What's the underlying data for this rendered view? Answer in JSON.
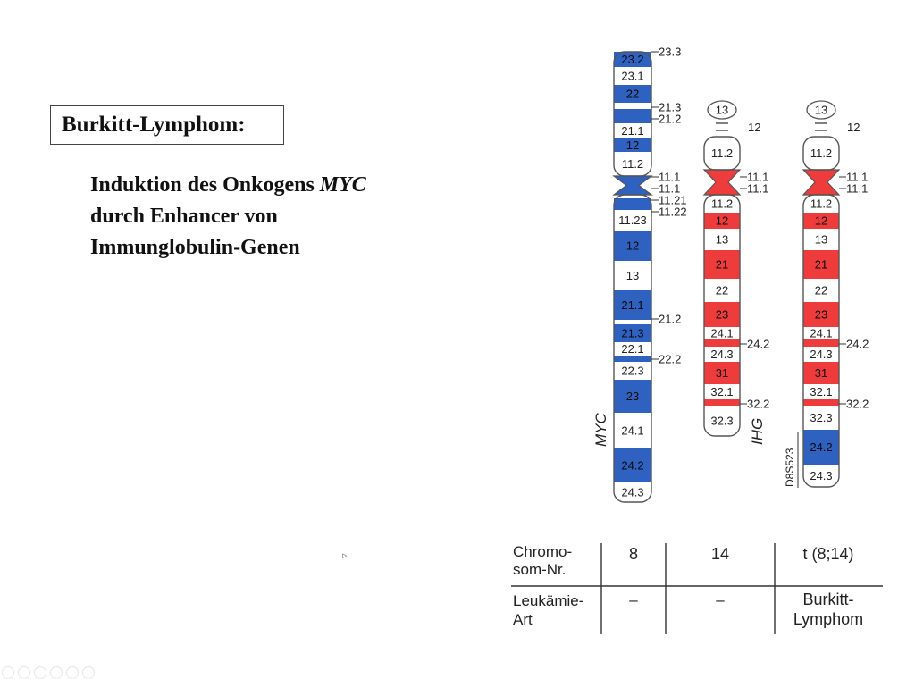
{
  "slide": {
    "title": "Burkitt-Lymphom:",
    "line1_prefix": "Induktion des Onkogens ",
    "line1_italic": "MYC",
    "line2": "durch Enhancer von",
    "line3": "Immunglobulin-Genen"
  },
  "colors": {
    "blue": "#2f62c0",
    "red": "#ee3b3b",
    "outline": "#555555"
  },
  "chromosomes": [
    {
      "id": "chr8",
      "gene_label": "MYC",
      "p_arm": [
        {
          "label": "23.2",
          "fill": "blue"
        },
        {
          "label": "23.1",
          "fill": "white"
        },
        {
          "label": "22",
          "fill": "blue"
        },
        {
          "label": "",
          "fill": "white"
        },
        {
          "label": "",
          "fill": "blue"
        },
        {
          "label": "21.1",
          "fill": "white"
        },
        {
          "label": "12",
          "fill": "blue"
        },
        {
          "label": "11.2",
          "fill": "white"
        }
      ],
      "q_arm": [
        {
          "label": "",
          "fill": "white"
        },
        {
          "label": "",
          "fill": "blue"
        },
        {
          "label": "11.23",
          "fill": "white"
        },
        {
          "label": "12",
          "fill": "blue"
        },
        {
          "label": "13",
          "fill": "white"
        },
        {
          "label": "21.1",
          "fill": "blue"
        },
        {
          "label": "",
          "fill": "white"
        },
        {
          "label": "21.3",
          "fill": "blue"
        },
        {
          "label": "22.1",
          "fill": "white"
        },
        {
          "label": "",
          "fill": "blue"
        },
        {
          "label": "22.3",
          "fill": "white"
        },
        {
          "label": "23",
          "fill": "blue"
        },
        {
          "label": "24.1",
          "fill": "white"
        },
        {
          "label": "24.2",
          "fill": "blue"
        },
        {
          "label": "24.3",
          "fill": "white"
        }
      ],
      "side_labels": [
        "23.3",
        "21.3",
        "21.2",
        "11.1",
        "11.1",
        "11.21",
        "11.22",
        "21.2",
        "22.2"
      ]
    },
    {
      "id": "chr14",
      "gene_label": "IHG",
      "satellite": "13",
      "stalk": "12",
      "p_arm": [
        {
          "label": "11.2",
          "fill": "white"
        }
      ],
      "q_arm": [
        {
          "label": "11.2",
          "fill": "white"
        },
        {
          "label": "12",
          "fill": "red"
        },
        {
          "label": "13",
          "fill": "white"
        },
        {
          "label": "21",
          "fill": "red"
        },
        {
          "label": "22",
          "fill": "white"
        },
        {
          "label": "23",
          "fill": "red"
        },
        {
          "label": "24.1",
          "fill": "white"
        },
        {
          "label": "",
          "fill": "red"
        },
        {
          "label": "24.3",
          "fill": "white"
        },
        {
          "label": "31",
          "fill": "red"
        },
        {
          "label": "32.1",
          "fill": "white"
        },
        {
          "label": "",
          "fill": "red"
        },
        {
          "label": "32.3",
          "fill": "white"
        }
      ],
      "side_labels": [
        "11.1",
        "11.1",
        "24.2",
        "32.2"
      ]
    },
    {
      "id": "der14",
      "gene_label": "D8S523",
      "satellite": "13",
      "stalk": "12",
      "p_arm": [
        {
          "label": "11.2",
          "fill": "white"
        }
      ],
      "q_arm": [
        {
          "label": "11.2",
          "fill": "white"
        },
        {
          "label": "12",
          "fill": "red"
        },
        {
          "label": "13",
          "fill": "white"
        },
        {
          "label": "21",
          "fill": "red"
        },
        {
          "label": "22",
          "fill": "white"
        },
        {
          "label": "23",
          "fill": "red"
        },
        {
          "label": "24.1",
          "fill": "white"
        },
        {
          "label": "",
          "fill": "red"
        },
        {
          "label": "24.3",
          "fill": "white"
        },
        {
          "label": "31",
          "fill": "red"
        },
        {
          "label": "32.1",
          "fill": "white"
        },
        {
          "label": "",
          "fill": "red"
        },
        {
          "label": "32.3",
          "fill": "white"
        },
        {
          "label": "24.2",
          "fill": "blue"
        },
        {
          "label": "24.3",
          "fill": "white"
        }
      ],
      "side_labels": [
        "11.1",
        "11.1",
        "24.2",
        "32.2"
      ]
    }
  ],
  "table": {
    "row1_header": "Chromo-\nsom-Nr.",
    "row1": [
      "8",
      "14",
      "t (8;14)"
    ],
    "row2_header": "Leukämie-\nArt",
    "row2": [
      "–",
      "–",
      "Burkitt-\nLymphom"
    ]
  }
}
